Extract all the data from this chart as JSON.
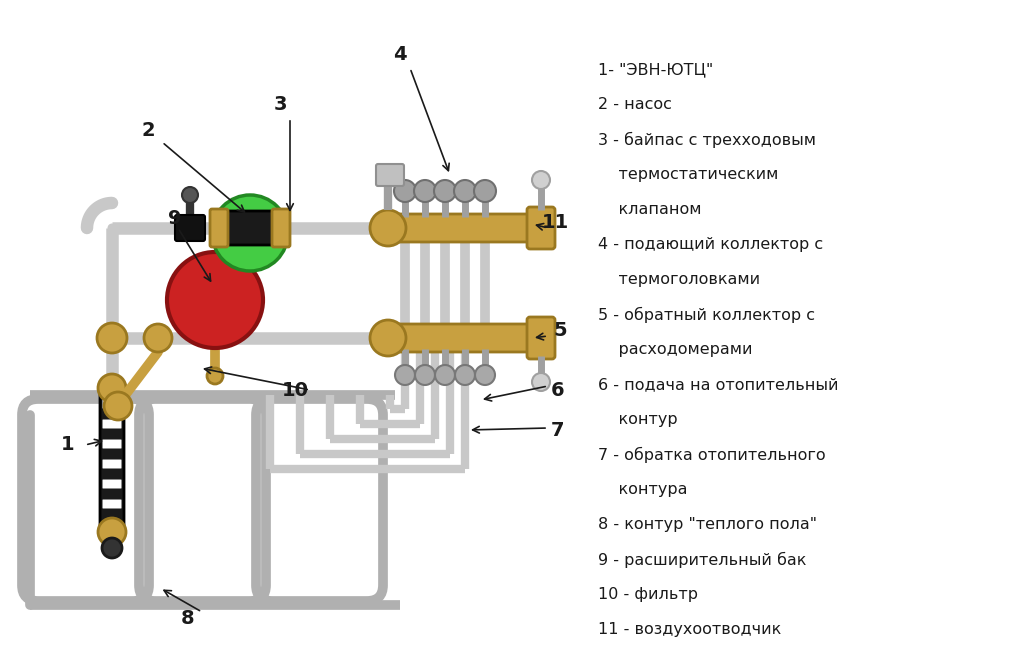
{
  "bg_color": "#ffffff",
  "pipe_color": "#c8c8c8",
  "pipe_dark": "#a0a0a0",
  "brass_color": "#c8a040",
  "brass_dark": "#9a7820",
  "black": "#1a1a1a",
  "green_dark": "#228822",
  "green_light": "#44cc44",
  "red_color": "#cc2222",
  "red_dark": "#881111",
  "legend_items": [
    [
      "1- \"ЭВН-ЮТЦ\"",
      0
    ],
    [
      "2 - насос",
      0
    ],
    [
      "3 - байпас с трехходовым",
      0
    ],
    [
      "    термостатическим",
      1
    ],
    [
      "    клапаном",
      1
    ],
    [
      "4 - подающий коллектор с",
      0
    ],
    [
      "    термоголовками",
      1
    ],
    [
      "5 - обратный коллектор с",
      0
    ],
    [
      "    расходомерами",
      1
    ],
    [
      "6 - подача на отопительный",
      0
    ],
    [
      "    контур",
      1
    ],
    [
      "7 - обратка отопительного",
      0
    ],
    [
      "    контура",
      1
    ],
    [
      "8 - контур \"теплого пола\"",
      0
    ],
    [
      "9 - расширительный бак",
      0
    ],
    [
      "10 - фильтр",
      0
    ],
    [
      "11 - воздухоотводчик",
      0
    ]
  ]
}
